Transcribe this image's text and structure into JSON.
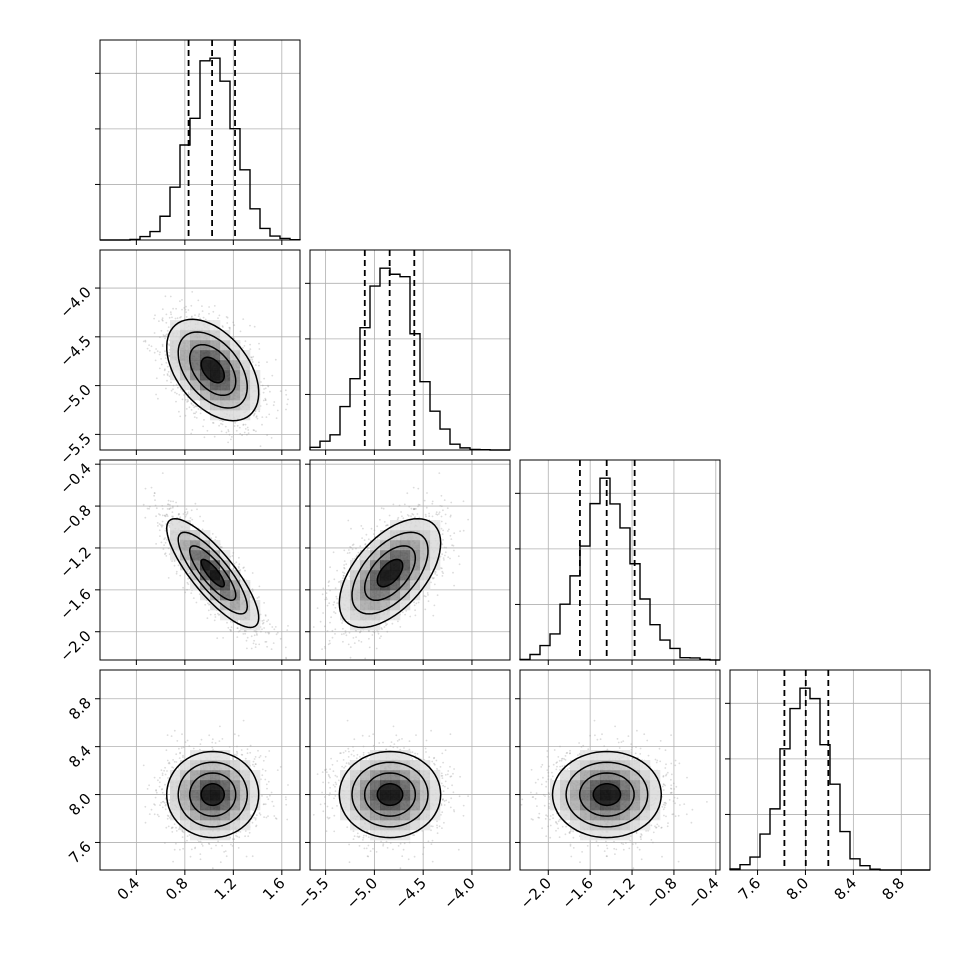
{
  "colors": {
    "background": "#ffffff",
    "ink": "#000000",
    "grid": "#b0b0b0",
    "scatter": "#9a9a9a"
  },
  "chart_data": {
    "type": "corner",
    "seed": 12345,
    "n_samples": 4000,
    "grid": true,
    "parameters": [
      {
        "mean": 1.03,
        "sd": 0.19,
        "range": [
          0.1,
          1.75
        ],
        "ticks": [
          "0.4",
          "0.8",
          "1.2",
          "1.6"
        ]
      },
      {
        "mean": -4.84,
        "sd": 0.26,
        "range": [
          -5.66,
          -3.61
        ],
        "ticks": [
          "−5.5",
          "−5.0",
          "−4.5",
          "−4.0"
        ]
      },
      {
        "mean": -1.44,
        "sd": 0.26,
        "range": [
          -2.27,
          -0.36
        ],
        "ticks": [
          "−2.0",
          "−1.6",
          "−1.2",
          "−0.8",
          "−0.4"
        ]
      },
      {
        "mean": 8.0,
        "sd": 0.18,
        "range": [
          7.37,
          9.04
        ],
        "ticks": [
          "7.6",
          "8.0",
          "8.4",
          "8.8"
        ]
      }
    ],
    "tick_values": [
      [
        0.4,
        0.8,
        1.2,
        1.6
      ],
      [
        -5.5,
        -5.0,
        -4.5,
        -4.0
      ],
      [
        -2.0,
        -1.6,
        -1.2,
        -0.8,
        -0.4
      ],
      [
        7.6,
        8.0,
        8.4,
        8.8
      ]
    ],
    "correlations": [
      [
        1.0,
        -0.45,
        -0.82,
        0.0
      ],
      [
        -0.45,
        1.0,
        0.55,
        0.0
      ],
      [
        -0.82,
        0.55,
        1.0,
        0.0
      ],
      [
        0.0,
        0.0,
        0.0,
        1.0
      ]
    ],
    "quantiles": [
      0.16,
      0.5,
      0.84
    ],
    "histogram_bins": 20,
    "hist2d_bins": 20,
    "contour_levels": [
      0.118,
      0.393,
      0.675,
      0.864
    ]
  }
}
